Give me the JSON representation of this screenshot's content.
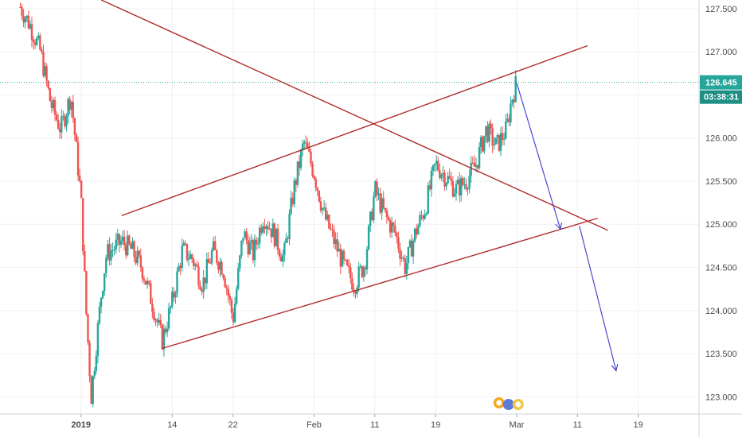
{
  "chart_data": {
    "type": "candlestick",
    "grid": true,
    "y_axis": {
      "position": "right",
      "ticks": [
        "127.500",
        "127.000",
        "126.500",
        "126.000",
        "125.500",
        "125.000",
        "124.500",
        "124.000",
        "123.500",
        "123.000"
      ],
      "tick_values": [
        127.5,
        127.0,
        126.5,
        126.0,
        125.5,
        125.0,
        124.5,
        124.0,
        123.5,
        123.0
      ],
      "ylim": [
        122.8,
        127.6
      ]
    },
    "x_axis": {
      "ticks": [
        {
          "label": "2019",
          "x": 0,
          "bold": true
        },
        {
          "label": "14",
          "x": 9
        },
        {
          "label": "22",
          "x": 15
        },
        {
          "label": "Feb",
          "x": 23
        },
        {
          "label": "11",
          "x": 29
        },
        {
          "label": "19",
          "x": 35
        },
        {
          "label": "Mar",
          "x": 43
        },
        {
          "label": "11",
          "x": 49
        },
        {
          "label": "19",
          "x": 55
        }
      ],
      "xlim": [
        -8,
        61
      ]
    },
    "last_price": {
      "value": "126.645",
      "level": 126.645,
      "countdown": "03:38:31"
    },
    "colors": {
      "up": "#26a69a",
      "down": "#ef5350",
      "trendline": "#b02a2a",
      "projection": "#3a3acf",
      "price": "#26a69a"
    },
    "trendlines": [
      {
        "name": "channel-upper",
        "points": [
          [
            4,
            125.1
          ],
          [
            50,
            127.07
          ]
        ]
      },
      {
        "name": "channel-lower",
        "points": [
          [
            8,
            123.56
          ],
          [
            51,
            125.07
          ]
        ]
      },
      {
        "name": "descending-resistance",
        "points": [
          [
            2,
            127.6
          ],
          [
            52,
            124.93
          ]
        ]
      }
    ],
    "projections": [
      {
        "name": "projection-1",
        "points": [
          [
            43,
            126.64
          ],
          [
            47.3,
            124.95
          ]
        ]
      },
      {
        "name": "projection-2",
        "points": [
          [
            49.2,
            124.98
          ],
          [
            52.8,
            123.31
          ]
        ]
      }
    ],
    "closes": [
      [
        -6,
        127.52
      ],
      [
        -5,
        127.3
      ],
      [
        -4,
        127.0
      ],
      [
        -3,
        126.4
      ],
      [
        -2,
        126.1
      ],
      [
        -1,
        126.5
      ],
      [
        0,
        125.3
      ],
      [
        0.5,
        124.0
      ],
      [
        1,
        123.0
      ],
      [
        1.5,
        123.6
      ],
      [
        2,
        124.2
      ],
      [
        2.5,
        124.65
      ],
      [
        3,
        124.7
      ],
      [
        4,
        124.8
      ],
      [
        5,
        124.7
      ],
      [
        6,
        124.5
      ],
      [
        7,
        124.1
      ],
      [
        8,
        123.65
      ],
      [
        9,
        124.1
      ],
      [
        10,
        124.7
      ],
      [
        11,
        124.6
      ],
      [
        12,
        124.3
      ],
      [
        13,
        124.7
      ],
      [
        14,
        124.5
      ],
      [
        15,
        123.9
      ],
      [
        16,
        124.9
      ],
      [
        17,
        124.65
      ],
      [
        18,
        125.1
      ],
      [
        19,
        124.9
      ],
      [
        20,
        124.6
      ],
      [
        21,
        125.4
      ],
      [
        22,
        125.95
      ],
      [
        23,
        125.6
      ],
      [
        24,
        125.1
      ],
      [
        25,
        124.8
      ],
      [
        26,
        124.5
      ],
      [
        27,
        124.3
      ],
      [
        28,
        124.55
      ],
      [
        29,
        125.4
      ],
      [
        30,
        125.1
      ],
      [
        31,
        124.9
      ],
      [
        32,
        124.5
      ],
      [
        33,
        124.9
      ],
      [
        34,
        125.2
      ],
      [
        35,
        125.7
      ],
      [
        36,
        125.55
      ],
      [
        37,
        125.4
      ],
      [
        38,
        125.5
      ],
      [
        39,
        125.7
      ],
      [
        40,
        126.1
      ],
      [
        41,
        125.9
      ],
      [
        42,
        126.1
      ],
      [
        42.5,
        126.45
      ],
      [
        43,
        126.65
      ]
    ]
  }
}
